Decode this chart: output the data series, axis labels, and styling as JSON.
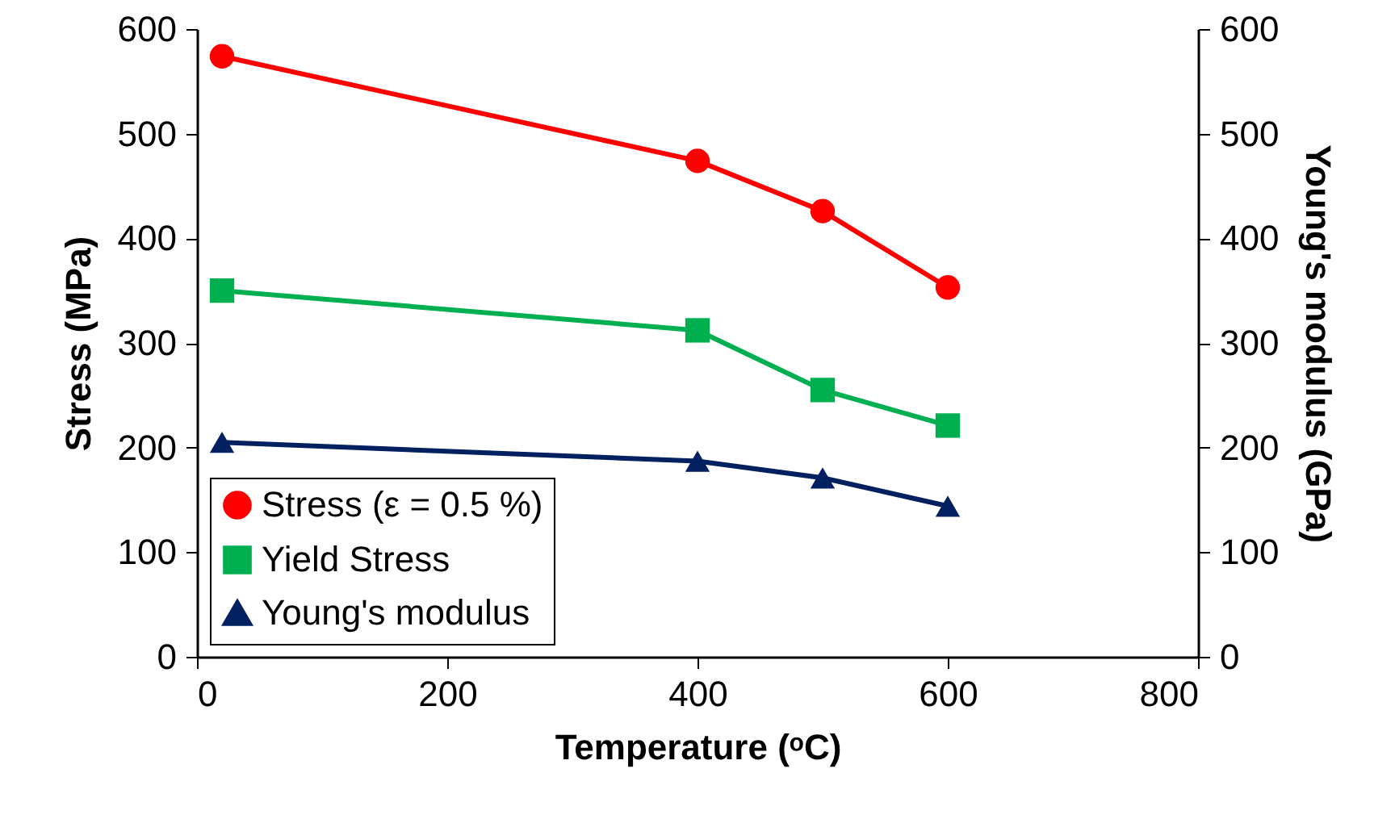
{
  "chart_data": {
    "type": "line",
    "xlabel": "Temperature (ᵒC)",
    "ylabel": "Stress (MPa)",
    "y2label": "Young's modulus (GPa)",
    "x": [
      20,
      400,
      500,
      600
    ],
    "series": [
      {
        "name": "Stress (ε = 0.5 %)",
        "color": "#ff0000",
        "marker": "circle",
        "values": [
          574,
          474,
          426,
          353
        ]
      },
      {
        "name": "Yield Stress",
        "color": "#00b050",
        "marker": "square",
        "values": [
          350,
          312,
          255,
          221
        ]
      },
      {
        "name": "Young's modulus",
        "color": "#002060",
        "marker": "triangle",
        "axis": "y2",
        "values": [
          205,
          187,
          171,
          144
        ]
      }
    ],
    "xlim": [
      0,
      800
    ],
    "xticks": [
      0,
      200,
      400,
      600,
      800
    ],
    "ylim": [
      0,
      600
    ],
    "yticks": [
      0,
      100,
      200,
      300,
      400,
      500,
      600
    ],
    "y2lim": [
      0,
      600
    ],
    "y2ticks": [
      0,
      100,
      200,
      300,
      400,
      500,
      600
    ],
    "grid": false,
    "legend": "bottom left",
    "line_style": "solid"
  }
}
